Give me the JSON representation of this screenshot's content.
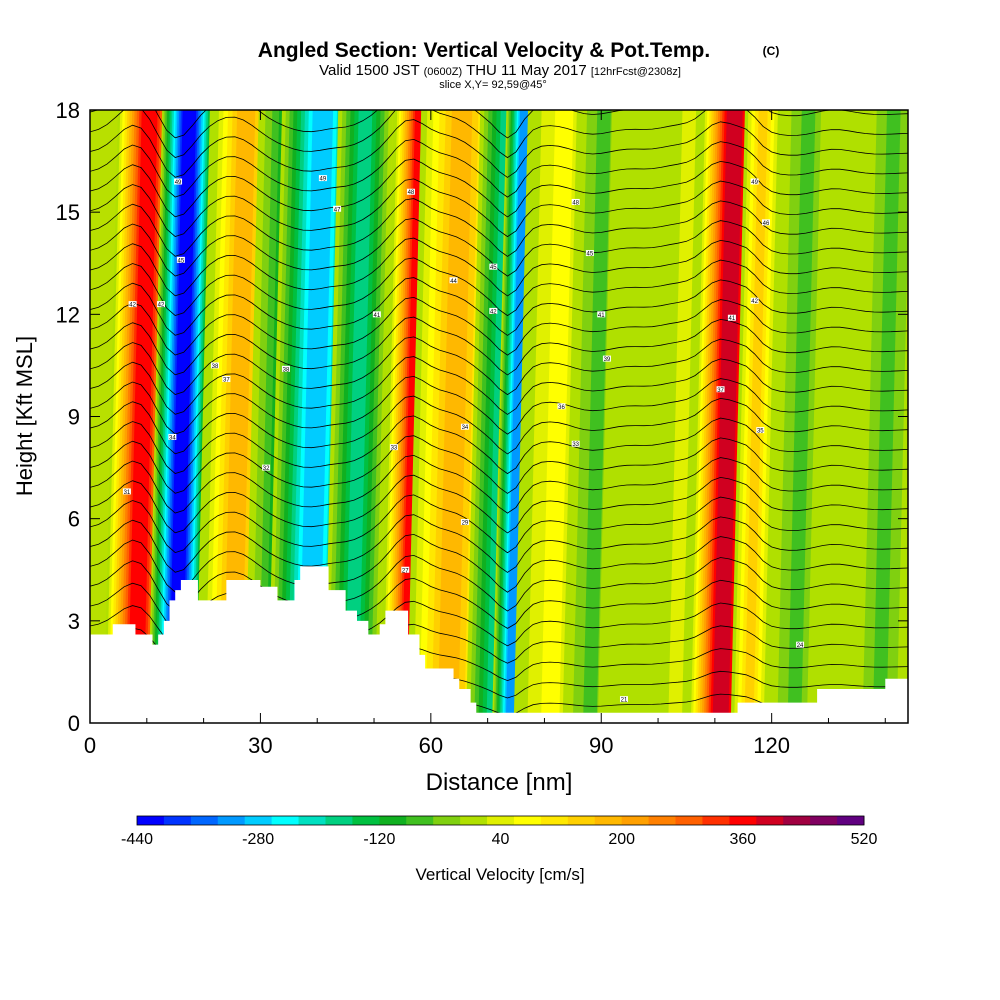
{
  "chart_data": {
    "type": "heatmap",
    "title": "Angled Section: Vertical Velocity & Pot.Temp.",
    "title_suffix": "(C)",
    "subtitle_main": "Valid 1500 JST",
    "subtitle_small1": "(0600Z)",
    "subtitle_date": "THU 11 May 2017",
    "subtitle_small2": "[12hrFcst@2308z]",
    "subtitle2": "slice X,Y= 92,59@45°",
    "xlabel": "Distance [nm]",
    "ylabel": "Height [Kft MSL]",
    "xlim": [
      0,
      144
    ],
    "ylim": [
      0,
      18
    ],
    "xticks": [
      "0",
      "30",
      "60",
      "90",
      "120"
    ],
    "xtick_values": [
      0,
      30,
      60,
      90,
      120
    ],
    "yticks": [
      "0",
      "3",
      "6",
      "9",
      "12",
      "15",
      "18"
    ],
    "ytick_values": [
      0,
      3,
      6,
      9,
      12,
      15,
      18
    ],
    "colorbar": {
      "label": "Vertical Velocity [cm/s]",
      "tick_labels": [
        "-440",
        "-280",
        "-120",
        "40",
        "200",
        "360",
        "520"
      ],
      "tick_values": [
        -440,
        -280,
        -120,
        40,
        200,
        360,
        520
      ],
      "min": -440,
      "max": 520,
      "step": 40,
      "colors": [
        "#0000ff",
        "#0033ff",
        "#0066ff",
        "#0099ff",
        "#00ccff",
        "#00ffff",
        "#00e0c0",
        "#00d080",
        "#00c040",
        "#10b020",
        "#40c020",
        "#80d010",
        "#b0e000",
        "#e0f000",
        "#ffff00",
        "#ffe800",
        "#ffd000",
        "#ffb800",
        "#ffa000",
        "#ff8000",
        "#ff6000",
        "#ff3000",
        "#ff0000",
        "#d00020",
        "#a00040",
        "#800060",
        "#600080"
      ]
    },
    "velocity_bands": [
      {
        "x": 8,
        "w": 3.5,
        "value": 450
      },
      {
        "x": 15,
        "w": 3.0,
        "value": -430
      },
      {
        "x": 25,
        "w": 4.0,
        "value": 260
      },
      {
        "x": 32,
        "w": 3.0,
        "value": -60
      },
      {
        "x": 38.5,
        "w": 4.5,
        "value": -280
      },
      {
        "x": 46,
        "w": 3.0,
        "value": -140
      },
      {
        "x": 56,
        "w": 3.2,
        "value": 460
      },
      {
        "x": 63,
        "w": 4.5,
        "value": 250
      },
      {
        "x": 71,
        "w": 3.0,
        "value": -150
      },
      {
        "x": 74,
        "w": 2.0,
        "value": -320
      },
      {
        "x": 81,
        "w": 4.0,
        "value": 120
      },
      {
        "x": 88,
        "w": 3.0,
        "value": -40
      },
      {
        "x": 95,
        "w": 3.5,
        "value": 60
      },
      {
        "x": 103,
        "w": 3.0,
        "value": 100
      },
      {
        "x": 111,
        "w": 3.5,
        "value": 480
      },
      {
        "x": 116,
        "w": 2.0,
        "value": 200
      },
      {
        "x": 124,
        "w": 3.0,
        "value": -40
      },
      {
        "x": 131,
        "w": 3.0,
        "value": 60
      },
      {
        "x": 139,
        "w": 3.0,
        "value": -20
      }
    ],
    "terrain_height": [
      [
        0,
        2.6
      ],
      [
        3,
        2.6
      ],
      [
        4,
        2.9
      ],
      [
        7,
        2.9
      ],
      [
        8,
        2.6
      ],
      [
        10,
        2.6
      ],
      [
        11,
        2.3
      ],
      [
        12,
        2.6
      ],
      [
        13,
        3.0
      ],
      [
        14,
        3.6
      ],
      [
        15,
        3.9
      ],
      [
        16,
        4.2
      ],
      [
        18,
        4.2
      ],
      [
        19,
        3.6
      ],
      [
        23,
        3.6
      ],
      [
        24,
        4.2
      ],
      [
        28,
        4.2
      ],
      [
        30,
        4.0
      ],
      [
        33,
        3.6
      ],
      [
        36,
        4.2
      ],
      [
        37,
        4.6
      ],
      [
        41,
        4.6
      ],
      [
        42,
        3.9
      ],
      [
        45,
        3.3
      ],
      [
        47,
        3.0
      ],
      [
        49,
        2.6
      ],
      [
        51,
        2.9
      ],
      [
        52,
        3.3
      ],
      [
        55,
        3.3
      ],
      [
        56,
        2.6
      ],
      [
        58,
        2.0
      ],
      [
        59,
        1.6
      ],
      [
        63,
        1.6
      ],
      [
        64,
        1.3
      ],
      [
        65,
        1.0
      ],
      [
        67,
        0.6
      ],
      [
        68,
        0.3
      ],
      [
        83,
        0.3
      ],
      [
        95,
        0.3
      ],
      [
        113,
        0.3
      ],
      [
        114,
        0.6
      ],
      [
        125,
        0.6
      ],
      [
        128,
        1.0
      ],
      [
        138,
        1.0
      ],
      [
        140,
        1.3
      ],
      [
        144,
        1.3
      ]
    ],
    "theta_level_labels": [
      {
        "x": 7.5,
        "y": 12.3,
        "text": "42"
      },
      {
        "x": 15.5,
        "y": 15.9,
        "text": "49"
      },
      {
        "x": 16,
        "y": 13.6,
        "text": "45"
      },
      {
        "x": 12.5,
        "y": 12.3,
        "text": "42"
      },
      {
        "x": 14.5,
        "y": 8.4,
        "text": "34"
      },
      {
        "x": 6.5,
        "y": 6.8,
        "text": "31"
      },
      {
        "x": 22,
        "y": 10.5,
        "text": "38"
      },
      {
        "x": 24,
        "y": 10.1,
        "text": "37"
      },
      {
        "x": 31,
        "y": 7.5,
        "text": "32"
      },
      {
        "x": 34.5,
        "y": 10.4,
        "text": "38"
      },
      {
        "x": 41,
        "y": 16.0,
        "text": "49"
      },
      {
        "x": 43.5,
        "y": 15.1,
        "text": "47"
      },
      {
        "x": 50.5,
        "y": 12.0,
        "text": "41"
      },
      {
        "x": 53.5,
        "y": 8.1,
        "text": "33"
      },
      {
        "x": 56.5,
        "y": 15.6,
        "text": "48"
      },
      {
        "x": 55.5,
        "y": 4.5,
        "text": "27"
      },
      {
        "x": 64,
        "y": 13.0,
        "text": "44"
      },
      {
        "x": 66,
        "y": 8.7,
        "text": "34"
      },
      {
        "x": 66,
        "y": 5.9,
        "text": "29"
      },
      {
        "x": 71,
        "y": 13.4,
        "text": "45"
      },
      {
        "x": 71,
        "y": 12.1,
        "text": "42"
      },
      {
        "x": 83,
        "y": 9.3,
        "text": "36"
      },
      {
        "x": 85.5,
        "y": 15.3,
        "text": "48"
      },
      {
        "x": 85.5,
        "y": 8.2,
        "text": "33"
      },
      {
        "x": 88,
        "y": 13.8,
        "text": "45"
      },
      {
        "x": 90,
        "y": 12.0,
        "text": "41"
      },
      {
        "x": 91,
        "y": 10.7,
        "text": "39"
      },
      {
        "x": 94,
        "y": 0.7,
        "text": "21"
      },
      {
        "x": 111,
        "y": 9.8,
        "text": "37"
      },
      {
        "x": 113,
        "y": 11.9,
        "text": "41"
      },
      {
        "x": 117,
        "y": 15.9,
        "text": "49"
      },
      {
        "x": 117,
        "y": 12.4,
        "text": "42"
      },
      {
        "x": 119,
        "y": 14.7,
        "text": "46"
      },
      {
        "x": 118,
        "y": 8.6,
        "text": "35"
      },
      {
        "x": 125,
        "y": 2.3,
        "text": "24"
      }
    ],
    "theta_base": 21,
    "theta_step": 1,
    "theta_count": 31
  }
}
